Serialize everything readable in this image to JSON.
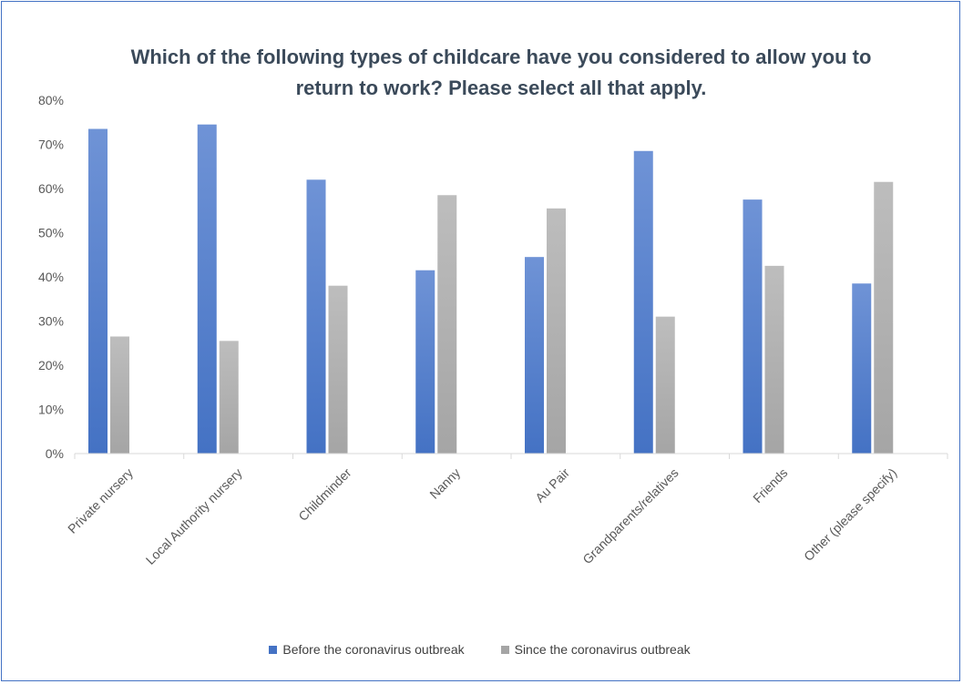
{
  "chart_data": {
    "type": "bar",
    "title": "Which of the following types of childcare have you considered to allow you to return to work? Please select all that apply.",
    "categories": [
      "Private nursery",
      "Local Authority nursery",
      "Childminder",
      "Nanny",
      "Au Pair",
      "Grandparents/relatives",
      "Friends",
      "Other (please specify)"
    ],
    "series": [
      {
        "name": "Before the coronavirus outbreak",
        "values": [
          73.5,
          74.5,
          62,
          41.5,
          44.5,
          68.5,
          57.5,
          38.5
        ],
        "color": "#4472c4"
      },
      {
        "name": "Since the coronavirus outbreak",
        "values": [
          26.5,
          25.5,
          38,
          58.5,
          55.5,
          31,
          42.5,
          61.5
        ],
        "color": "#a5a5a5"
      }
    ],
    "yticks": [
      "0%",
      "10%",
      "20%",
      "30%",
      "40%",
      "50%",
      "60%",
      "70%",
      "80%"
    ],
    "ylim": [
      0,
      80
    ],
    "xlabel": "",
    "ylabel": "",
    "grid": false,
    "legend_position": "bottom"
  }
}
